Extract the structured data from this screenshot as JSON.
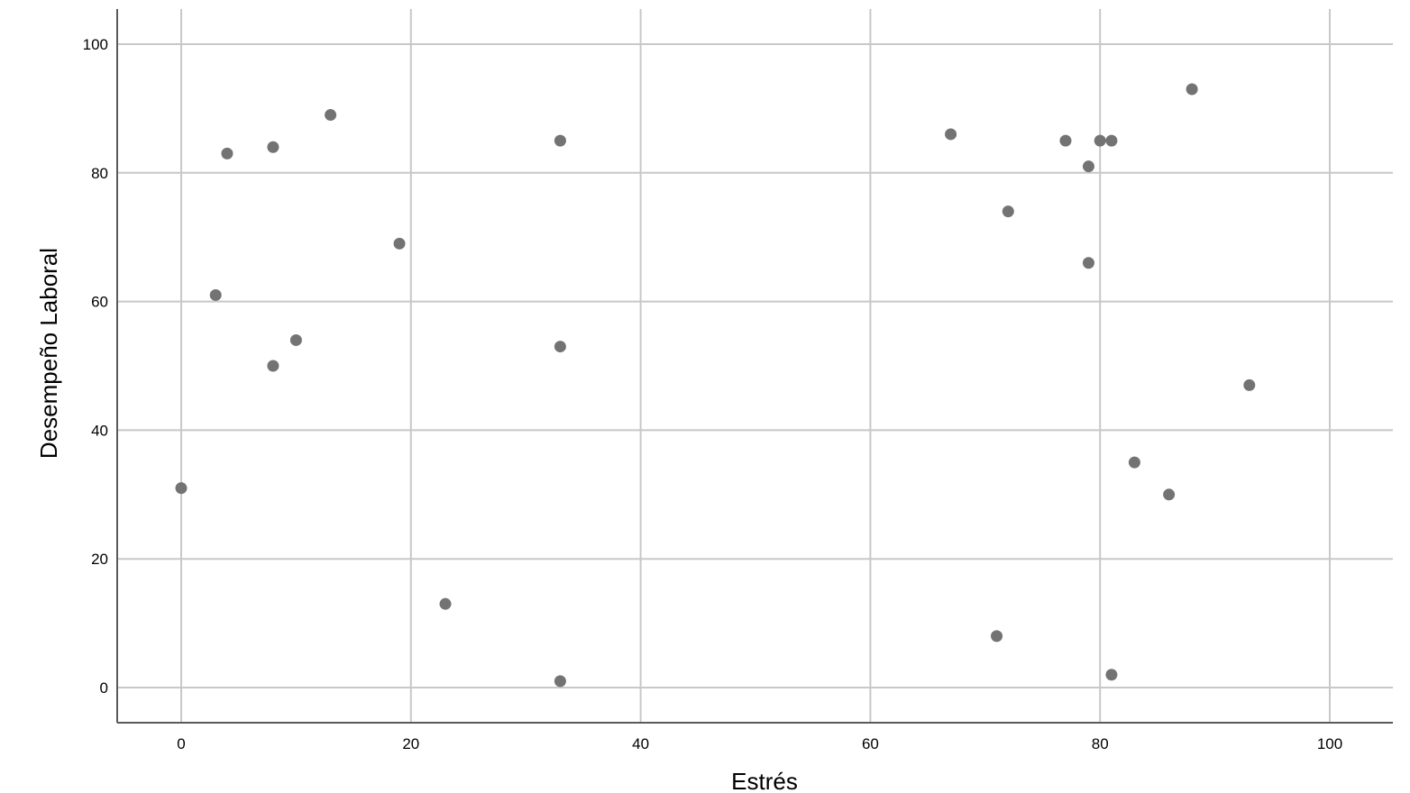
{
  "chart_data": {
    "type": "scatter",
    "xlabel": "Estrés",
    "ylabel": "Desempeño Laboral",
    "xlim": [
      -5.5,
      105.5
    ],
    "ylim": [
      -5.5,
      105.5
    ],
    "x_ticks": [
      0,
      20,
      40,
      60,
      80,
      100
    ],
    "y_ticks": [
      0,
      20,
      40,
      60,
      80,
      100
    ],
    "x_tick_labels": [
      "0",
      "20",
      "40",
      "60",
      "80",
      "100"
    ],
    "y_tick_labels": [
      "0",
      "20",
      "40",
      "60",
      "80",
      "100"
    ],
    "grid": true,
    "colors": {
      "point": "#737373",
      "grid": "#c8c8c8",
      "axis": "#5a5a5a"
    },
    "points": [
      {
        "x": 0,
        "y": 31
      },
      {
        "x": 3,
        "y": 61
      },
      {
        "x": 4,
        "y": 83
      },
      {
        "x": 8,
        "y": 84
      },
      {
        "x": 8,
        "y": 50
      },
      {
        "x": 10,
        "y": 54
      },
      {
        "x": 13,
        "y": 89
      },
      {
        "x": 19,
        "y": 69
      },
      {
        "x": 23,
        "y": 13
      },
      {
        "x": 33,
        "y": 85
      },
      {
        "x": 33,
        "y": 53
      },
      {
        "x": 33,
        "y": 1
      },
      {
        "x": 67,
        "y": 86
      },
      {
        "x": 71,
        "y": 8
      },
      {
        "x": 72,
        "y": 74
      },
      {
        "x": 77,
        "y": 85
      },
      {
        "x": 79,
        "y": 81
      },
      {
        "x": 79,
        "y": 66
      },
      {
        "x": 80,
        "y": 85
      },
      {
        "x": 81,
        "y": 85
      },
      {
        "x": 81,
        "y": 2
      },
      {
        "x": 83,
        "y": 35
      },
      {
        "x": 86,
        "y": 30
      },
      {
        "x": 88,
        "y": 93
      },
      {
        "x": 93,
        "y": 47
      }
    ]
  }
}
